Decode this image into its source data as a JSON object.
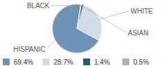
{
  "chart_data": {
    "type": "pie",
    "categories": [
      "HISPANIC",
      "WHITE",
      "ASIAN",
      "BLACK"
    ],
    "values": [
      69.4,
      28.7,
      1.4,
      0.5
    ],
    "value_labels": [
      "69.4%",
      "28.7%",
      "1.4%",
      "0.5%"
    ],
    "colors": [
      "#6e93b7",
      "#d3dbe7",
      "#2c5878",
      "#a4b4c8"
    ]
  }
}
